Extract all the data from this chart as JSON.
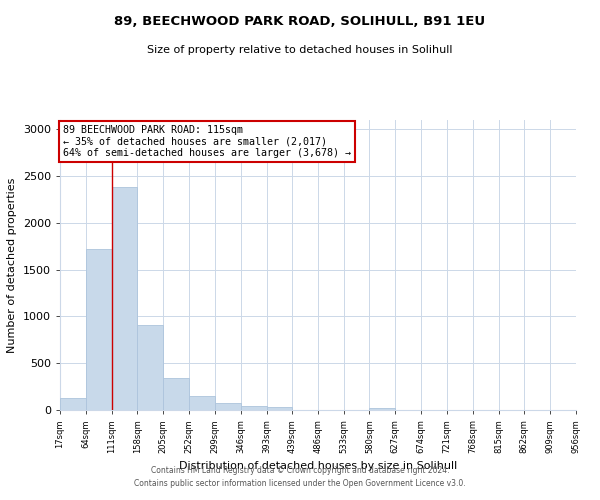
{
  "title": "89, BEECHWOOD PARK ROAD, SOLIHULL, B91 1EU",
  "subtitle": "Size of property relative to detached houses in Solihull",
  "xlabel": "Distribution of detached houses by size in Solihull",
  "ylabel": "Number of detached properties",
  "bin_edges": [
    17,
    64,
    111,
    158,
    205,
    252,
    299,
    346,
    393,
    439,
    486,
    533,
    580,
    627,
    674,
    721,
    768,
    815,
    862,
    909,
    956
  ],
  "bar_heights": [
    125,
    1720,
    2380,
    910,
    345,
    155,
    80,
    45,
    35,
    0,
    0,
    0,
    25,
    0,
    0,
    0,
    0,
    0,
    0,
    0
  ],
  "bar_color": "#c8d9ea",
  "bar_edge_color": "#adc4dc",
  "property_line_x": 111,
  "property_line_color": "#cc0000",
  "annotation_text": "89 BEECHWOOD PARK ROAD: 115sqm\n← 35% of detached houses are smaller (2,017)\n64% of semi-detached houses are larger (3,678) →",
  "annotation_box_color": "#ffffff",
  "annotation_box_edge_color": "#cc0000",
  "ylim": [
    0,
    3100
  ],
  "yticks": [
    0,
    500,
    1000,
    1500,
    2000,
    2500,
    3000
  ],
  "tick_labels": [
    "17sqm",
    "64sqm",
    "111sqm",
    "158sqm",
    "205sqm",
    "252sqm",
    "299sqm",
    "346sqm",
    "393sqm",
    "439sqm",
    "486sqm",
    "533sqm",
    "580sqm",
    "627sqm",
    "674sqm",
    "721sqm",
    "768sqm",
    "815sqm",
    "862sqm",
    "909sqm",
    "956sqm"
  ],
  "footer_line1": "Contains HM Land Registry data © Crown copyright and database right 2024.",
  "footer_line2": "Contains public sector information licensed under the Open Government Licence v3.0.",
  "background_color": "#ffffff",
  "grid_color": "#ccd8e8"
}
